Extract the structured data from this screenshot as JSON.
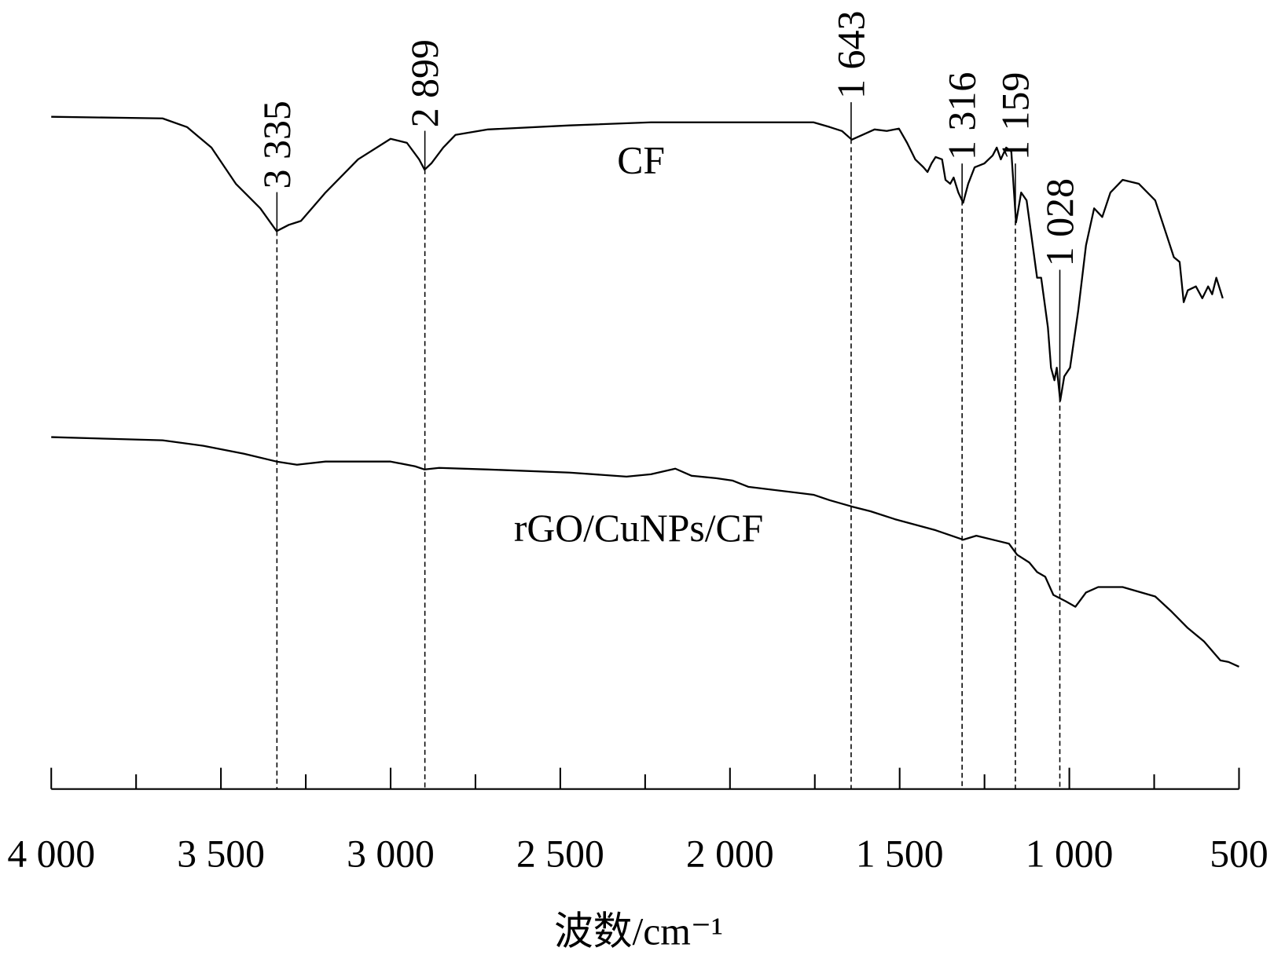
{
  "chart_data": {
    "type": "line",
    "x_label": "波数/cm⁻¹",
    "xlim": [
      4000,
      500
    ],
    "ylim": [
      0,
      100
    ],
    "xticks": [
      {
        "value": 4000,
        "label": "4 000"
      },
      {
        "value": 3500,
        "label": "3 500"
      },
      {
        "value": 3000,
        "label": "3 000"
      },
      {
        "value": 2500,
        "label": "2 500"
      },
      {
        "value": 2000,
        "label": "2 000"
      },
      {
        "value": 1500,
        "label": "1 500"
      },
      {
        "value": 1000,
        "label": "1 000"
      },
      500
    ],
    "xminorticks": [
      3750,
      3250,
      2750,
      2250,
      1750,
      1250,
      750
    ],
    "peaks": [
      {
        "value": 3335,
        "label": "3 335"
      },
      {
        "value": 2899,
        "label": "2 899"
      },
      {
        "value": 1643,
        "label": "1 643"
      },
      {
        "value": 1316,
        "label": "1 316"
      },
      {
        "value": 1159,
        "label": "1 159"
      },
      {
        "value": 1028,
        "label": "1 028"
      }
    ],
    "series": [
      {
        "name": "CF",
        "color": "#000000",
        "x": [
          4000,
          3672,
          3600,
          3528,
          3456,
          3384,
          3336,
          3300,
          3264,
          3192,
          3096,
          3000,
          2952,
          2916,
          2900,
          2880,
          2845,
          2809,
          2713,
          2473,
          2233,
          1993,
          1754,
          1706,
          1670,
          1641,
          1610,
          1574,
          1538,
          1502,
          1478,
          1454,
          1430,
          1418,
          1406,
          1394,
          1375,
          1365,
          1351,
          1341,
          1327,
          1313,
          1298,
          1279,
          1250,
          1226,
          1214,
          1202,
          1186,
          1171,
          1157,
          1142,
          1126,
          1111,
          1095,
          1083,
          1063,
          1054,
          1044,
          1037,
          1027,
          1015,
          998,
          974,
          951,
          927,
          903,
          879,
          843,
          795,
          747,
          711,
          692,
          675,
          663,
          651,
          627,
          608,
          591,
          579,
          567,
          548
        ],
        "values": [
          85.2,
          85.0,
          83.9,
          81.3,
          76.7,
          73.6,
          70.7,
          71.5,
          72.0,
          75.6,
          79.8,
          82.4,
          81.9,
          79.8,
          78.5,
          79.3,
          81.3,
          82.9,
          83.6,
          84.1,
          84.5,
          84.5,
          84.5,
          83.9,
          83.4,
          82.3,
          82.9,
          83.6,
          83.4,
          83.7,
          81.9,
          79.8,
          78.8,
          78.2,
          79.3,
          80.1,
          79.8,
          77.2,
          76.7,
          77.5,
          75.6,
          74.3,
          76.7,
          78.8,
          79.3,
          80.3,
          81.3,
          79.8,
          81.3,
          80.8,
          71.8,
          75.6,
          74.6,
          69.9,
          64.8,
          64.8,
          58.5,
          53.4,
          51.8,
          53.4,
          49.2,
          52.3,
          53.4,
          60.6,
          68.9,
          73.6,
          72.5,
          75.6,
          77.2,
          76.7,
          74.6,
          69.9,
          67.4,
          66.8,
          61.7,
          63.2,
          63.7,
          62.2,
          63.7,
          62.7,
          64.8,
          62.2
        ]
      },
      {
        "name": "rGO/CuNPs/CF",
        "color": "#000000",
        "x": [
          4000,
          3672,
          3552,
          3432,
          3336,
          3276,
          3192,
          3000,
          2928,
          2900,
          2857,
          2713,
          2473,
          2305,
          2233,
          2161,
          2113,
          2041,
          1993,
          1946,
          1754,
          1706,
          1641,
          1586,
          1514,
          1394,
          1313,
          1274,
          1178,
          1154,
          1118,
          1095,
          1071,
          1047,
          1011,
          982,
          951,
          915,
          843,
          747,
          699,
          651,
          603,
          555,
          531,
          500
        ],
        "values": [
          44.6,
          44.2,
          43.5,
          42.5,
          41.5,
          41.1,
          41.5,
          41.5,
          40.9,
          40.5,
          40.7,
          40.5,
          40.1,
          39.6,
          39.9,
          40.6,
          39.7,
          39.4,
          39.1,
          38.3,
          37.3,
          36.6,
          35.8,
          35.2,
          34.2,
          32.8,
          31.6,
          32.1,
          31.1,
          29.7,
          28.7,
          27.5,
          26.9,
          24.6,
          23.8,
          23.1,
          24.9,
          25.6,
          25.6,
          24.4,
          22.5,
          20.4,
          18.7,
          16.3,
          16.1,
          15.5
        ]
      }
    ]
  }
}
